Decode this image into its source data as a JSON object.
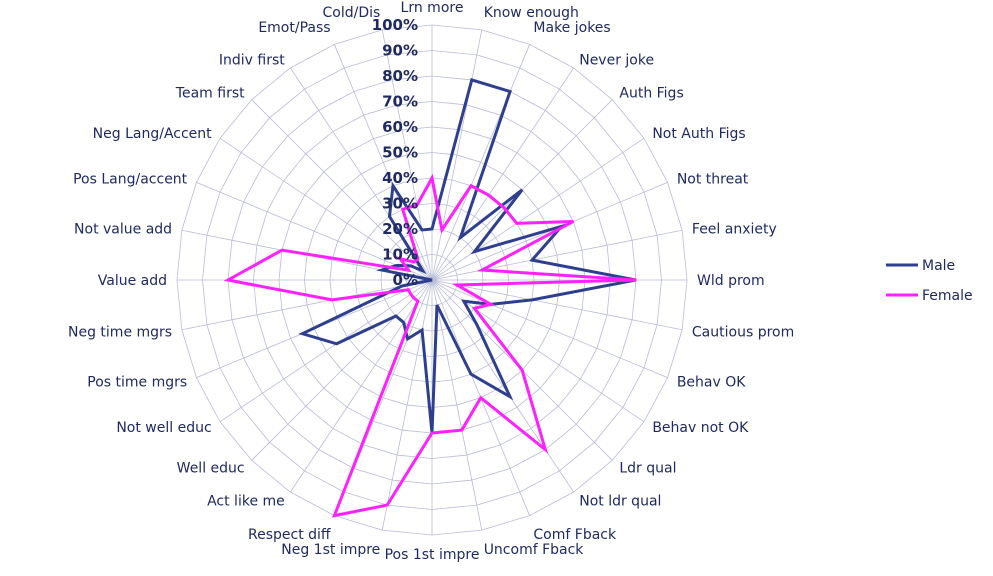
{
  "chart_data": {
    "type": "radar",
    "categories": [
      "Lrn more",
      "Know enough",
      "Make jokes",
      "Never joke",
      "Auth Figs",
      "Not Auth Figs",
      "Not threat",
      "Feel anxiety",
      "Wld prom",
      "Cautious prom",
      "Behav OK",
      "Behav not OK",
      "Ldr qual",
      "Not ldr qual",
      "Comf Fback",
      "Uncomf Fback",
      "Pos 1st impre",
      "Neg 1st impre",
      "Respect diff",
      "Act like me",
      "Well educ",
      "Not well educ",
      "Pos time mgrs",
      "Neg time mgrs",
      "Value add",
      "Not value add",
      "Pos Lang/accent",
      "Neg Lang/Accent",
      "Team first",
      "Indiv first",
      "Emot/Pass",
      "Cold/Dis"
    ],
    "r_ticks": [
      "0%",
      "10%",
      "20%",
      "30%",
      "40%",
      "50%",
      "60%",
      "70%",
      "80%",
      "90%",
      "100%"
    ],
    "rlim": [
      0,
      100
    ],
    "grid": true,
    "legend_position": "right",
    "series": [
      {
        "name": "Male",
        "color": "#2e3f8f",
        "values": [
          20,
          80,
          80,
          20,
          50,
          20,
          55,
          40,
          80,
          40,
          25,
          15,
          25,
          55,
          40,
          10,
          60,
          20,
          25,
          20,
          20,
          45,
          55,
          12,
          0,
          20,
          15,
          10,
          5,
          30,
          40,
          20
        ]
      },
      {
        "name": "Female",
        "color": "#ff20ff",
        "values": [
          40,
          20,
          40,
          40,
          40,
          40,
          60,
          20,
          80,
          10,
          25,
          20,
          50,
          80,
          50,
          60,
          60,
          90,
          100,
          10,
          10,
          10,
          10,
          40,
          80,
          60,
          10,
          15,
          10,
          10,
          30,
          30
        ]
      }
    ]
  }
}
